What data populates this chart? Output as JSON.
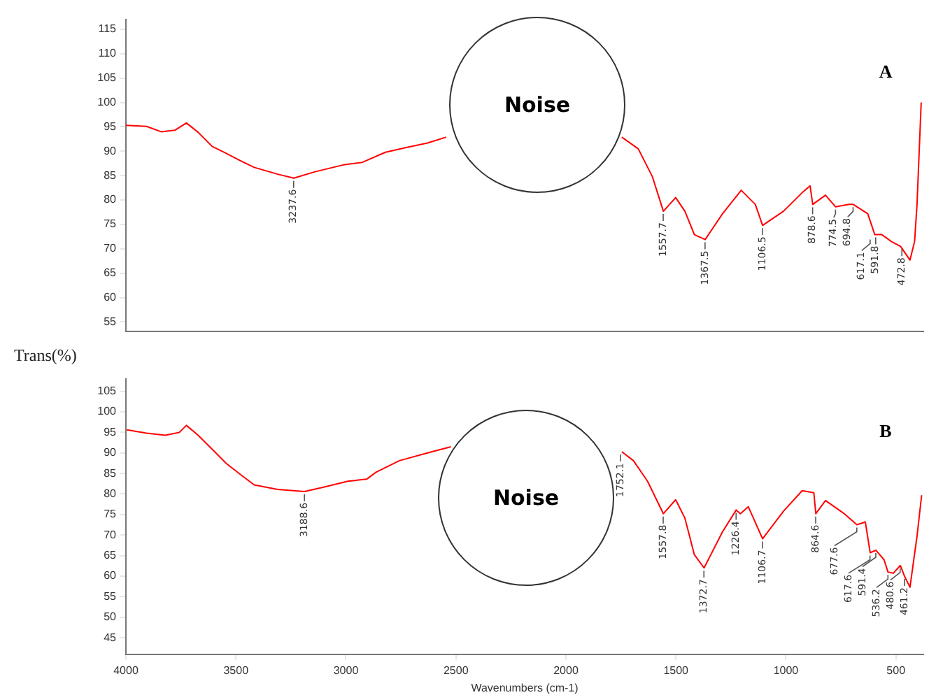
{
  "chart_data": [
    {
      "type": "line",
      "xlim": [
        4000,
        375
      ],
      "xticks": [
        4000,
        3500,
        3000,
        2500,
        2000,
        1500,
        1000,
        500
      ],
      "ylim": [
        53,
        117
      ],
      "yticks": [
        55,
        60,
        65,
        70,
        75,
        80,
        85,
        90,
        95,
        100,
        105,
        110,
        115
      ],
      "tick_labels": "y",
      "grid": false,
      "legend": false,
      "marker": "none",
      "line_style": "solid",
      "series": [
        {
          "color": "#ff0000",
          "x": [
            4000,
            3906,
            3840,
            3778,
            3725,
            3672,
            3608,
            3545,
            3481,
            3417,
            3310,
            3237,
            3140,
            3012,
            2927,
            2820,
            2733,
            2629,
            2544,
            2150,
            1746,
            1671,
            1607,
            1557,
            1501,
            1459,
            1416,
            1367,
            1288,
            1203,
            1139,
            1106,
            1011,
            926,
            890,
            878,
            820,
            774,
            713,
            694,
            628,
            596,
            564,
            521,
            479,
            436,
            415,
            404,
            385
          ],
          "values": [
            95.3,
            95.1,
            94.0,
            94.3,
            95.8,
            93.9,
            91.0,
            89.6,
            88.1,
            86.7,
            85.3,
            84.5,
            85.8,
            87.2,
            87.7,
            89.8,
            90.7,
            91.7,
            92.9,
            null,
            92.9,
            90.5,
            84.8,
            77.7,
            80.5,
            77.7,
            72.9,
            71.9,
            77.2,
            82.0,
            79.1,
            74.8,
            77.7,
            81.5,
            82.9,
            79.1,
            81.0,
            78.6,
            79.1,
            79.1,
            77.2,
            72.9,
            72.9,
            71.5,
            70.5,
            67.7,
            71.5,
            79.1,
            100
          ]
        }
      ],
      "annotations": [
        "Noise",
        "A",
        {
          "text": "3237.6",
          "x": 3237.6,
          "y": 84.5
        },
        {
          "text": "1557.7",
          "x": 1557.7,
          "y": 77.7
        },
        {
          "text": "1367.5",
          "x": 1367.5,
          "y": 71.9
        },
        {
          "text": "1106.5",
          "x": 1106.5,
          "y": 74.8
        },
        {
          "text": "878.6",
          "x": 878.6,
          "y": 79.1
        },
        {
          "text": "774.5",
          "x": 774.5,
          "y": 78.6
        },
        {
          "text": "694.8",
          "x": 694.8,
          "y": 79.1
        },
        {
          "text": "617.1",
          "x": 617.1,
          "y": 72.5
        },
        {
          "text": "591.8",
          "x": 591.8,
          "y": 72.9
        },
        {
          "text": "472.8",
          "x": 472.8,
          "y": 70.5
        }
      ]
    },
    {
      "type": "line",
      "ylabel": "Trans(%)",
      "xlabel": "Wavenumbers (cm-1)",
      "xlim": [
        4000,
        375
      ],
      "xticks": [
        4000,
        3500,
        3000,
        2500,
        2000,
        1500,
        1000,
        500
      ],
      "ylim": [
        41,
        108
      ],
      "yticks": [
        45,
        50,
        55,
        60,
        65,
        70,
        75,
        80,
        85,
        90,
        95,
        100,
        105
      ],
      "grid": false,
      "legend": false,
      "marker": "none",
      "line_style": "solid",
      "series": [
        {
          "color": "#ff0000",
          "x": [
            3996,
            3906,
            3821,
            3757,
            3725,
            3672,
            3608,
            3545,
            3481,
            3417,
            3310,
            3188,
            3098,
            2991,
            2906,
            2863,
            2757,
            2629,
            2523,
            2150,
            1746,
            1693,
            1629,
            1557,
            1501,
            1459,
            1416,
            1372,
            1288,
            1226,
            1207,
            1171,
            1106,
            1011,
            926,
            873,
            864,
            820,
            735,
            677,
            639,
            617,
            591,
            554,
            536,
            512,
            480,
            461,
            436,
            404,
            383
          ],
          "values": [
            95.6,
            94.8,
            94.3,
            95.0,
            96.7,
            94.3,
            90.9,
            87.5,
            84.8,
            82.2,
            81.1,
            80.6,
            81.7,
            83.1,
            83.6,
            85.3,
            88.1,
            90.0,
            91.5,
            null,
            90.3,
            88.1,
            83.1,
            75.2,
            78.6,
            74.1,
            65.2,
            62.0,
            70.8,
            76.1,
            75.2,
            76.9,
            69.1,
            75.8,
            80.8,
            80.3,
            75.2,
            78.4,
            75.2,
            72.5,
            73.2,
            65.7,
            66.3,
            64.0,
            61.0,
            60.7,
            62.6,
            60.0,
            57.3,
            69.7,
            79.7
          ]
        }
      ],
      "annotations": [
        "Noise",
        "B",
        {
          "text": "3188.6",
          "x": 3188.6,
          "y": 80.6
        },
        {
          "text": "1752.1",
          "x": 1752.1,
          "y": 90.3
        },
        {
          "text": "1557.8",
          "x": 1557.8,
          "y": 75.2
        },
        {
          "text": "1372.7",
          "x": 1372.7,
          "y": 62.0
        },
        {
          "text": "1226.4",
          "x": 1226.4,
          "y": 76.1
        },
        {
          "text": "1106.7",
          "x": 1106.7,
          "y": 69.1
        },
        {
          "text": "864.6",
          "x": 864.6,
          "y": 75.2
        },
        {
          "text": "677.6",
          "x": 677.6,
          "y": 72.5
        },
        {
          "text": "617.6",
          "x": 617.6,
          "y": 65.7
        },
        {
          "text": "591.4",
          "x": 591.4,
          "y": 66.3
        },
        {
          "text": "536.2",
          "x": 536.2,
          "y": 61.0
        },
        {
          "text": "480.6",
          "x": 480.6,
          "y": 62.6
        },
        {
          "text": "461.2",
          "x": 461.2,
          "y": 60.0
        }
      ]
    }
  ]
}
